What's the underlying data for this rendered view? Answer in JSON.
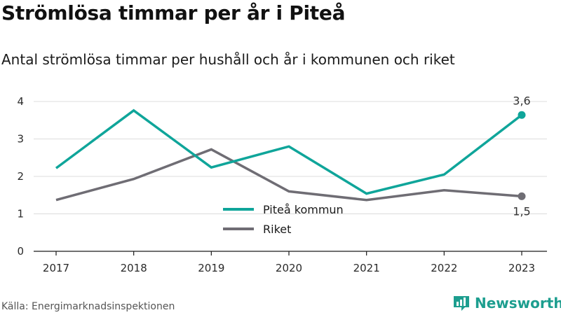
{
  "header": {
    "title": "Strömlösa timmar per år i Piteå",
    "subtitle": "Antal strömlösa timmar per hushåll och år i kommunen och riket"
  },
  "footer": {
    "source": "Källa: Energimarknadsinspektionen",
    "brand": "Newsworthy",
    "brand_icon": "bar-chart-logo-icon"
  },
  "colors": {
    "pitea": "#0fa59a",
    "riket": "#6f6d74",
    "grid": "#dcdcdc",
    "brand": "#1d9e8f"
  },
  "chart_data": {
    "type": "line",
    "categories": [
      "2017",
      "2018",
      "2019",
      "2020",
      "2021",
      "2022",
      "2023"
    ],
    "series": [
      {
        "name": "Piteå kommun",
        "values": [
          2.22,
          3.76,
          2.24,
          2.8,
          1.54,
          2.05,
          3.64
        ]
      },
      {
        "name": "Riket",
        "values": [
          1.37,
          1.93,
          2.72,
          1.6,
          1.37,
          1.63,
          1.47
        ]
      }
    ],
    "yticks": [
      "0",
      "1",
      "2",
      "3",
      "4"
    ],
    "ylim": [
      0,
      4
    ],
    "grid": true,
    "legend_position": "bottom-center",
    "end_labels": [
      "3,6",
      "1,5"
    ]
  }
}
